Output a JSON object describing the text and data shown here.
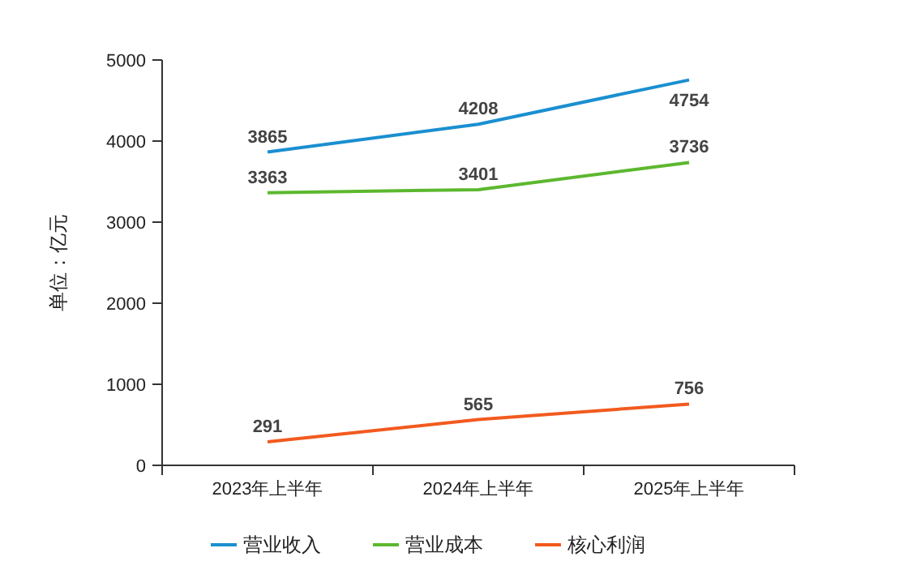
{
  "chart_data": {
    "type": "line",
    "ylabel": "单位：亿元",
    "categories": [
      "2023年上半年",
      "2024年上半年",
      "2025年上半年"
    ],
    "series": [
      {
        "name": "营业收入",
        "color": "#1a8fd0",
        "values": [
          3865,
          4208,
          4754
        ]
      },
      {
        "name": "营业成本",
        "color": "#5cb82e",
        "values": [
          3363,
          3401,
          3736
        ]
      },
      {
        "name": "核心利润",
        "color": "#f25a1e",
        "values": [
          291,
          565,
          756
        ]
      }
    ],
    "ylim": [
      0,
      5000
    ],
    "yticks": [
      0,
      1000,
      2000,
      3000,
      4000,
      5000
    ],
    "grid": false,
    "legend": "bottom",
    "data_labels": true,
    "marker": "none",
    "line_style": "solid"
  }
}
